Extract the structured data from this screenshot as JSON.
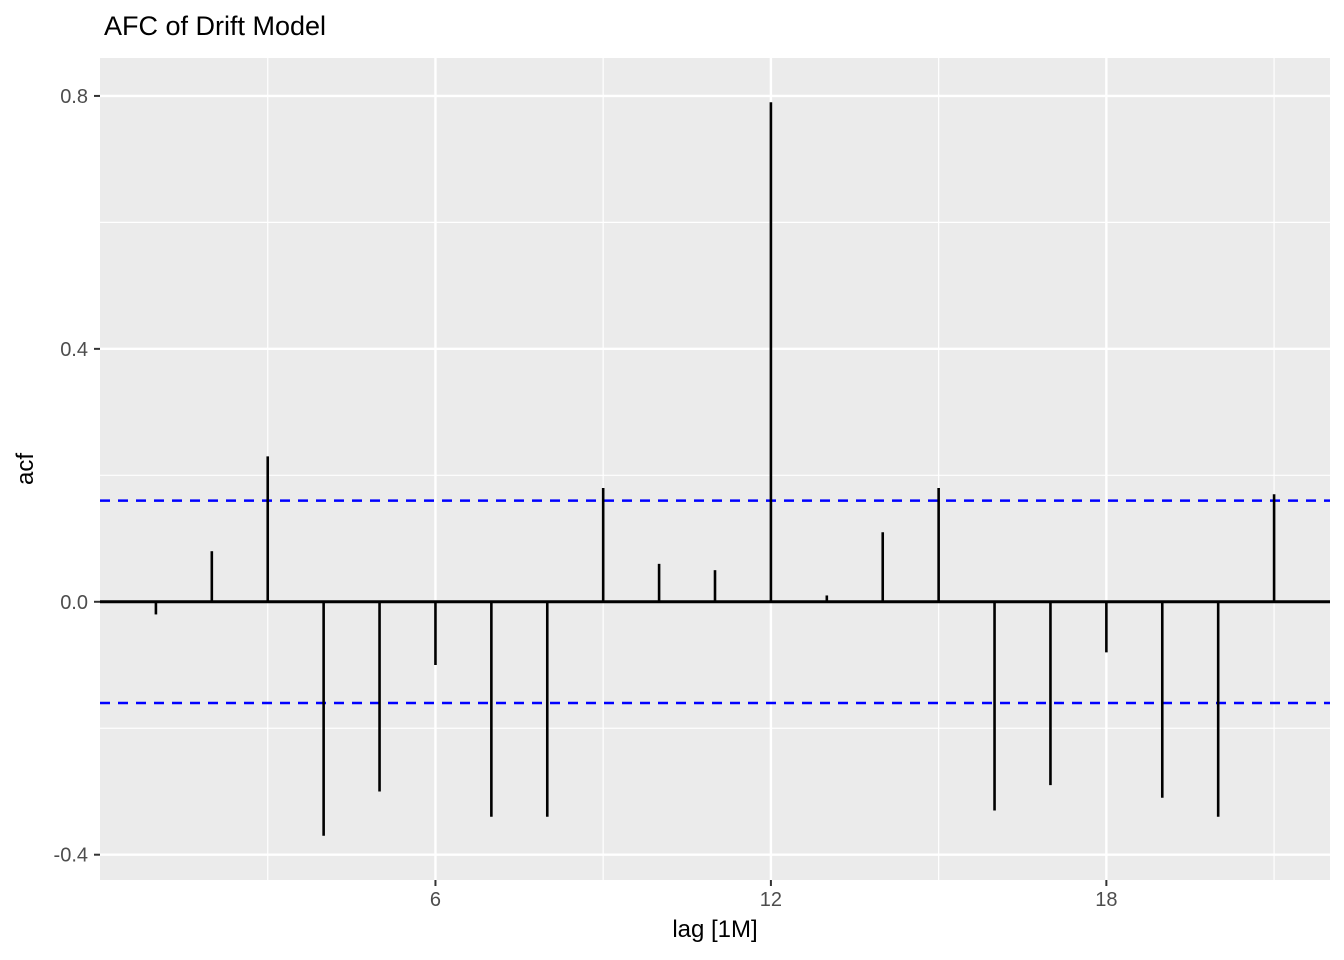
{
  "title": "AFC of Drift Model",
  "chart_data": {
    "type": "bar",
    "subtype": "acf-spike-plot",
    "title": "AFC of Drift Model",
    "xlabel": "lag [1M]",
    "ylabel": "acf",
    "x": [
      1,
      2,
      3,
      4,
      5,
      6,
      7,
      8,
      9,
      10,
      11,
      12,
      13,
      14,
      15,
      16,
      17,
      18,
      19,
      20,
      21
    ],
    "values": [
      -0.02,
      0.08,
      0.23,
      -0.37,
      -0.3,
      -0.1,
      -0.34,
      -0.34,
      0.18,
      0.06,
      0.05,
      0.79,
      0.01,
      0.11,
      0.18,
      -0.33,
      -0.29,
      -0.08,
      -0.31,
      -0.34,
      0.17
    ],
    "confidence_bounds": {
      "upper": 0.16,
      "lower": -0.16
    },
    "xlim": [
      0,
      22
    ],
    "ylim": [
      -0.44,
      0.86
    ],
    "x_ticks": {
      "major": {
        "values": [
          6,
          12,
          18
        ],
        "labels": [
          "6",
          "12",
          "18"
        ]
      },
      "minor": [
        3,
        9,
        15,
        21
      ]
    },
    "y_ticks": {
      "major": {
        "values": [
          0.8,
          0.4,
          0.0,
          -0.4
        ],
        "labels": [
          "0.8",
          "0.4",
          "0.0",
          "-0.4"
        ]
      },
      "minor": [
        0.6,
        0.2,
        -0.2
      ]
    },
    "grid": true,
    "legend_position": "none",
    "colors": {
      "panel_background": "#EBEBEB",
      "gridline": "#FFFFFF",
      "spike": "#000000",
      "zero_line": "#000000",
      "confidence_line": "#0000FF",
      "axis_tick": "#333333",
      "tick_label": "#4D4D4D",
      "title": "#000000"
    }
  }
}
